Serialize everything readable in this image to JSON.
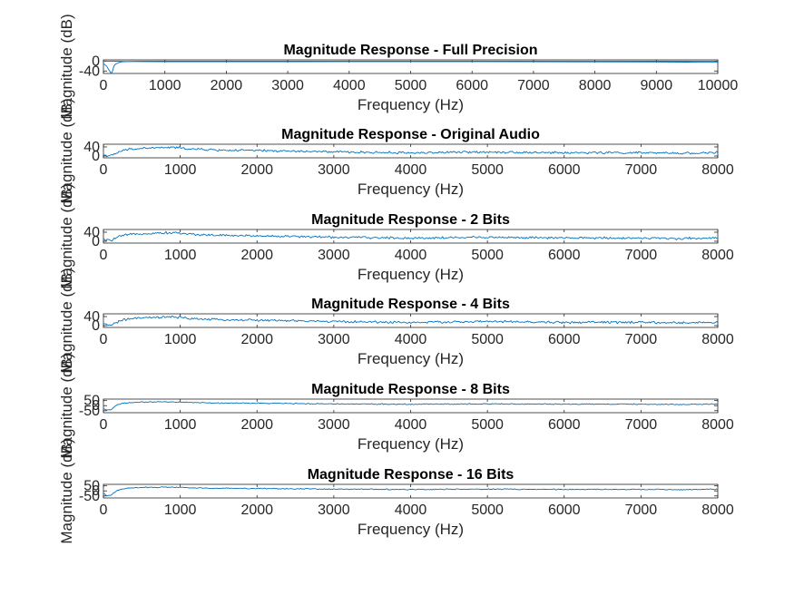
{
  "figure": {
    "background": "#ffffff",
    "axes_color": "#262626",
    "line_color": "#0072bd"
  },
  "chart_data": [
    {
      "type": "line",
      "title": "Magnitude Response - Full Precision",
      "xlabel": "Frequency (Hz)",
      "ylabel": "Magnitude (dB)",
      "xlim": [
        0,
        10000
      ],
      "ylim": [
        -50,
        5
      ],
      "xticks": [
        0,
        1000,
        2000,
        3000,
        4000,
        5000,
        6000,
        7000,
        8000,
        9000,
        10000
      ],
      "yticks": [
        0,
        -40
      ],
      "series": [
        {
          "x": [
            0,
            50,
            100,
            130,
            150,
            170,
            200,
            250,
            300,
            400,
            500,
            700,
            1000,
            1500,
            2000,
            3000,
            4000,
            5000,
            6000,
            7000,
            8000,
            9000,
            10000
          ],
          "y": [
            -10,
            -20,
            -40,
            -50,
            -38,
            -20,
            -12,
            -6,
            -3,
            -1.5,
            -0.8,
            -0.4,
            -0.2,
            -0.1,
            -0.1,
            -0.1,
            -0.1,
            -0.1,
            -0.1,
            -0.2,
            -0.3,
            -0.5,
            -1
          ]
        },
        {
          "x": [
            0,
            100,
            200,
            400,
            1000,
            2000,
            3000,
            4000,
            5000,
            6000,
            7000,
            8000,
            9000,
            9500,
            10000
          ],
          "y": [
            0,
            0,
            -0.5,
            -1.5,
            -2.5,
            -2.5,
            -2.2,
            -2,
            -1.8,
            -2,
            -2.5,
            -3,
            -3.5,
            -4,
            -5
          ]
        }
      ]
    },
    {
      "type": "line",
      "title": "Magnitude Response - Original Audio",
      "xlabel": "Frequency (Hz)",
      "ylabel": "Magnitude (dB)",
      "xlim": [
        0,
        8000
      ],
      "ylim": [
        -8,
        52
      ],
      "xticks": [
        0,
        1000,
        2000,
        3000,
        4000,
        5000,
        6000,
        7000,
        8000
      ],
      "yticks": [
        40,
        0
      ],
      "envelope": {
        "x": [
          0,
          50,
          100,
          150,
          200,
          300,
          500,
          700,
          900,
          1000,
          1200,
          1500,
          2000,
          2500,
          3000,
          3500,
          4000,
          4500,
          5000,
          5500,
          6000,
          6500,
          7000,
          7500,
          8000
        ],
        "y": [
          5,
          2,
          0,
          8,
          18,
          28,
          34,
          36,
          38,
          35,
          30,
          26,
          24,
          21,
          18,
          16,
          14,
          16,
          18,
          16,
          14,
          15,
          14,
          12,
          15
        ]
      },
      "noise_amplitude_db": 8
    },
    {
      "type": "line",
      "title": "Magnitude Response - 2 Bits",
      "xlabel": "Frequency (Hz)",
      "ylabel": "Magnitude (dB)",
      "xlim": [
        0,
        8000
      ],
      "ylim": [
        -8,
        52
      ],
      "xticks": [
        0,
        1000,
        2000,
        3000,
        4000,
        5000,
        6000,
        7000,
        8000
      ],
      "yticks": [
        40,
        0
      ],
      "envelope": {
        "x": [
          0,
          50,
          100,
          150,
          200,
          300,
          500,
          700,
          900,
          1000,
          1200,
          1500,
          2000,
          2500,
          3000,
          3500,
          4000,
          4500,
          5000,
          5500,
          6000,
          6500,
          7000,
          7500,
          8000
        ],
        "y": [
          8,
          4,
          5,
          12,
          20,
          28,
          34,
          36,
          38,
          35,
          30,
          26,
          24,
          21,
          18,
          16,
          14,
          16,
          18,
          16,
          14,
          15,
          14,
          12,
          15
        ]
      },
      "noise_amplitude_db": 8
    },
    {
      "type": "line",
      "title": "Magnitude Response - 4 Bits",
      "xlabel": "Frequency (Hz)",
      "ylabel": "Magnitude (dB)",
      "xlim": [
        0,
        8000
      ],
      "ylim": [
        -8,
        52
      ],
      "xticks": [
        0,
        1000,
        2000,
        3000,
        4000,
        5000,
        6000,
        7000,
        8000
      ],
      "yticks": [
        40,
        0
      ],
      "envelope": {
        "x": [
          0,
          50,
          100,
          150,
          200,
          300,
          500,
          700,
          900,
          1000,
          1200,
          1500,
          2000,
          2500,
          3000,
          3500,
          4000,
          4500,
          5000,
          5500,
          6000,
          6500,
          7000,
          7500,
          8000
        ],
        "y": [
          6,
          3,
          4,
          10,
          19,
          28,
          34,
          36,
          38,
          35,
          30,
          26,
          24,
          21,
          18,
          16,
          14,
          16,
          18,
          16,
          14,
          15,
          14,
          12,
          15
        ]
      },
      "noise_amplitude_db": 8
    },
    {
      "type": "line",
      "title": "Magnitude Response - 8 Bits",
      "xlabel": "Frequency (Hz)",
      "ylabel": "Magnitude (dB)",
      "xlim": [
        0,
        8000
      ],
      "ylim": [
        -70,
        65
      ],
      "xticks": [
        0,
        1000,
        2000,
        3000,
        4000,
        5000,
        6000,
        7000,
        8000
      ],
      "yticks": [
        50,
        0,
        -50
      ],
      "envelope": {
        "x": [
          0,
          50,
          100,
          150,
          200,
          300,
          500,
          700,
          900,
          1000,
          1200,
          1500,
          2000,
          2500,
          3000,
          3500,
          4000,
          4500,
          5000,
          5500,
          6000,
          6500,
          7000,
          7500,
          8000
        ],
        "y": [
          -30,
          -45,
          -40,
          -5,
          15,
          28,
          34,
          36,
          38,
          35,
          30,
          26,
          24,
          21,
          18,
          16,
          14,
          16,
          18,
          16,
          14,
          15,
          14,
          12,
          15
        ]
      },
      "noise_amplitude_db": 8
    },
    {
      "type": "line",
      "title": "Magnitude Response - 16 Bits",
      "xlabel": "Frequency (Hz)",
      "ylabel": "Magnitude (dB)",
      "xlim": [
        0,
        8000
      ],
      "ylim": [
        -70,
        65
      ],
      "xticks": [
        0,
        1000,
        2000,
        3000,
        4000,
        5000,
        6000,
        7000,
        8000
      ],
      "yticks": [
        50,
        0,
        -50
      ],
      "envelope": {
        "x": [
          0,
          50,
          100,
          150,
          200,
          300,
          500,
          700,
          900,
          1000,
          1200,
          1500,
          2000,
          2500,
          3000,
          3500,
          4000,
          4500,
          5000,
          5500,
          6000,
          6500,
          7000,
          7500,
          8000
        ],
        "y": [
          -25,
          -50,
          -45,
          -10,
          10,
          28,
          34,
          36,
          38,
          35,
          30,
          26,
          24,
          21,
          18,
          16,
          14,
          16,
          18,
          16,
          14,
          15,
          14,
          12,
          15
        ]
      },
      "noise_amplitude_db": 8
    }
  ]
}
